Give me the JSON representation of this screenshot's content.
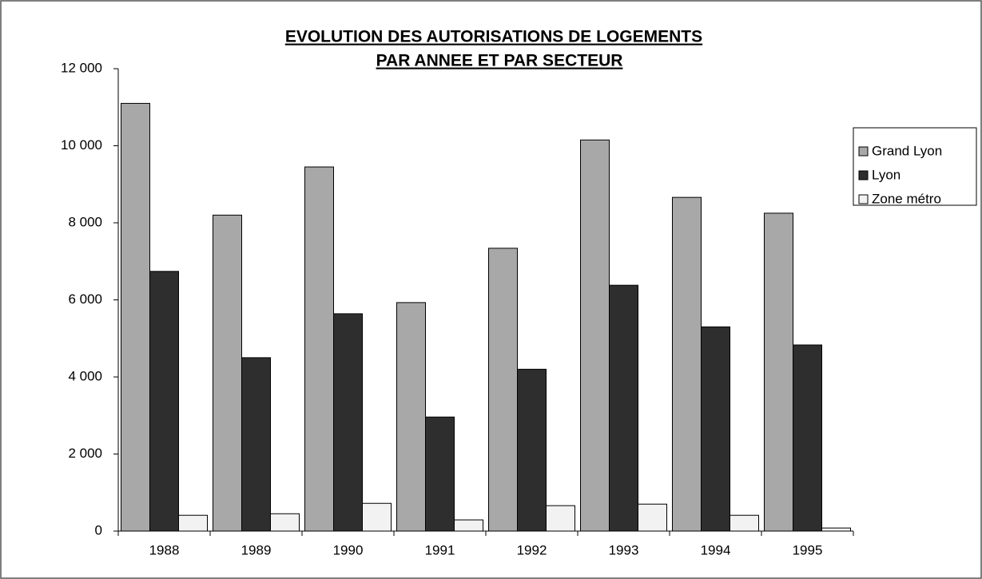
{
  "chart_data": {
    "type": "bar",
    "title": [
      "EVOLUTION DES AUTORISATIONS DE LOGEMENTS",
      "PAR ANNEE ET PAR SECTEUR"
    ],
    "categories": [
      "1988",
      "1989",
      "1990",
      "1991",
      "1992",
      "1993",
      "1994",
      "1995"
    ],
    "series": [
      {
        "name": "Grand Lyon",
        "color": "#a8a8a8",
        "values": [
          11100,
          8200,
          9450,
          5930,
          7340,
          10150,
          8660,
          8250
        ]
      },
      {
        "name": "Lyon",
        "color": "#2e2e2e",
        "values": [
          6740,
          4500,
          5640,
          2960,
          4200,
          6380,
          5300,
          4830
        ]
      },
      {
        "name": "Zone métro",
        "color": "#f2f2f2",
        "values": [
          410,
          450,
          720,
          290,
          660,
          700,
          410,
          80
        ]
      }
    ],
    "ylim": [
      0,
      12000
    ],
    "yticks": [
      0,
      {
        "value": 2000,
        "label": "2 000"
      },
      {
        "value": 4000,
        "label": "4 000"
      },
      {
        "value": 6000,
        "label": "6 000"
      },
      {
        "value": 8000,
        "label": "8 000"
      },
      {
        "value": 10000,
        "label": "10 000"
      },
      {
        "value": 12000,
        "label": "12 000"
      }
    ],
    "grid": false,
    "legend": "right"
  }
}
